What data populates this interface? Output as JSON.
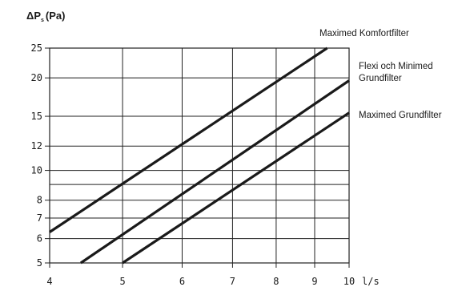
{
  "chart_data": {
    "type": "line",
    "ylabel_main": "ΔP",
    "ylabel_sub": "s",
    "ylabel_unit": "(Pa)",
    "xlabel": "l/s",
    "xscale": "log",
    "yscale": "log",
    "xlim": [
      4,
      10
    ],
    "ylim": [
      5,
      25
    ],
    "x_ticks": [
      4,
      5,
      6,
      7,
      8,
      9,
      10
    ],
    "x_tick_labels": [
      "4",
      "5",
      "6",
      "7",
      "8",
      "9",
      "10"
    ],
    "y_ticks": [
      5,
      6,
      7,
      8,
      10,
      12,
      15,
      20,
      25
    ],
    "y_tick_labels": [
      "5",
      "6",
      "7",
      "8",
      "10",
      "12",
      "15",
      "20",
      "25"
    ],
    "grid": true,
    "series": [
      {
        "name": "Maximed Komfortfilter",
        "label_lines": [
          "Maximed Komfortfilter"
        ],
        "points": [
          [
            4.0,
            6.3
          ],
          [
            9.35,
            25
          ]
        ]
      },
      {
        "name": "Flexi och Minimed Grundfilter",
        "label_lines": [
          "Flexi och Minimed",
          "Grundfilter"
        ],
        "points": [
          [
            4.4,
            5.0
          ],
          [
            10.0,
            19.6
          ]
        ]
      },
      {
        "name": "Maximed Grundfilter",
        "label_lines": [
          "Maximed Grundfilter"
        ],
        "points": [
          [
            5.0,
            5.0
          ],
          [
            10.0,
            15.4
          ]
        ]
      }
    ]
  }
}
